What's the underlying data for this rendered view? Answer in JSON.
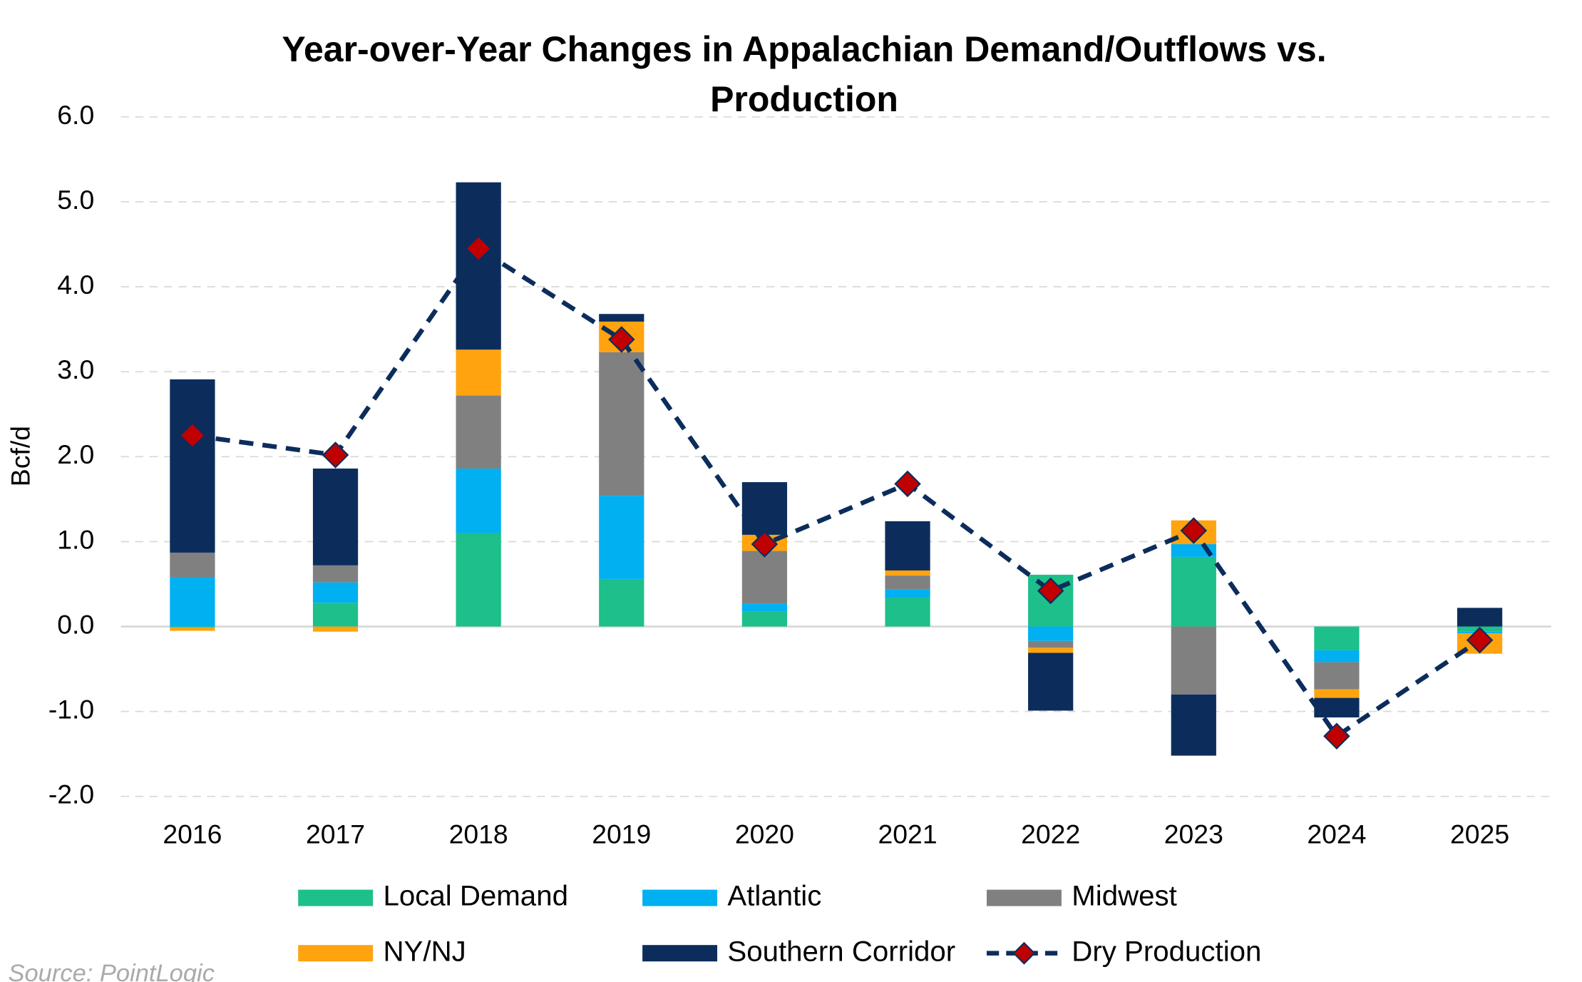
{
  "chart_data": {
    "type": "bar",
    "stacked": true,
    "title": "Year-over-Year Changes in Appalachian Demand/Outflows vs. Production",
    "y_label": "Bcf/d",
    "source": "Source: PointLogic",
    "categories": [
      "2016",
      "2017",
      "2018",
      "2019",
      "2020",
      "2021",
      "2022",
      "2023",
      "2024",
      "2025"
    ],
    "ylim": [
      -2.0,
      6.0
    ],
    "yticks": [
      {
        "value": -2,
        "label": "-2.0"
      },
      {
        "value": -1,
        "label": "-1.0"
      },
      {
        "value": 0,
        "label": "0.0"
      },
      {
        "value": 1,
        "label": "1.0"
      },
      {
        "value": 2,
        "label": "2.0"
      },
      {
        "value": 3,
        "label": "3.0"
      },
      {
        "value": 4,
        "label": "4.0"
      },
      {
        "value": 5,
        "label": "5.0"
      },
      {
        "value": 6,
        "label": "6.0"
      }
    ],
    "grid": true,
    "series": [
      {
        "name": "Local Demand",
        "type": "bar",
        "color": "#1dbf8a",
        "values": [
          -0.01,
          0.28,
          1.1,
          0.56,
          0.18,
          0.34,
          0.61,
          0.82,
          -0.28,
          -0.06
        ]
      },
      {
        "name": "Atlantic",
        "type": "bar",
        "color": "#00b0f0",
        "values": [
          0.58,
          0.24,
          0.76,
          0.98,
          0.09,
          0.1,
          -0.17,
          0.15,
          -0.14,
          -0.02
        ]
      },
      {
        "name": "Midwest",
        "type": "bar",
        "color": "#808080",
        "values": [
          0.29,
          0.2,
          0.86,
          1.69,
          0.62,
          0.16,
          -0.08,
          -0.8,
          -0.32,
          0
        ]
      },
      {
        "name": "NY/NJ",
        "type": "bar",
        "color": "#ffa30f",
        "values": [
          -0.04,
          -0.06,
          0.54,
          0.36,
          0.19,
          0.06,
          -0.06,
          0.28,
          -0.1,
          -0.24
        ]
      },
      {
        "name": "Southern Corridor",
        "type": "bar",
        "color": "#0c2d5c",
        "values": [
          2.04,
          1.14,
          1.97,
          0.09,
          0.62,
          0.58,
          -0.68,
          -0.72,
          -0.23,
          0.22
        ]
      },
      {
        "name": "Dry Production",
        "type": "line",
        "color": "#0c2d5c",
        "marker_color": "#c00000",
        "dashed": true,
        "values": [
          2.25,
          2.02,
          4.45,
          3.38,
          0.97,
          1.68,
          0.42,
          1.13,
          -1.29,
          -0.16
        ]
      }
    ]
  }
}
